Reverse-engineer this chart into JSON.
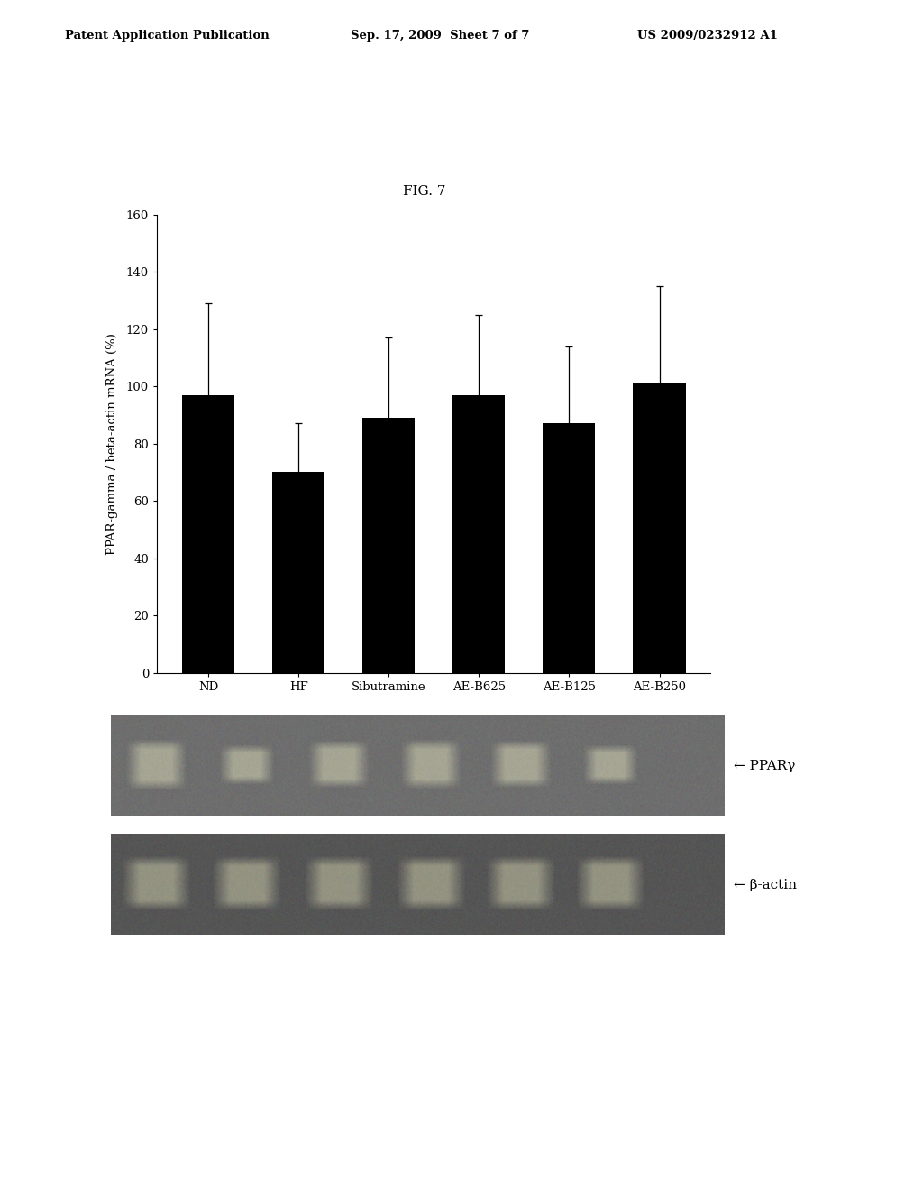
{
  "title": "FIG. 7",
  "header_left": "Patent Application Publication",
  "header_mid": "Sep. 17, 2009  Sheet 7 of 7",
  "header_right": "US 2009/0232912 A1",
  "categories": [
    "ND",
    "HF",
    "Sibutramine",
    "AE-B625",
    "AE-B125",
    "AE-B250"
  ],
  "values": [
    97,
    70,
    89,
    97,
    87,
    101
  ],
  "errors": [
    32,
    17,
    28,
    28,
    27,
    34
  ],
  "bar_color": "#000000",
  "ylabel": "PPAR-gamma / beta-actin mRNA (%)",
  "ylim": [
    0,
    160
  ],
  "yticks": [
    0,
    20,
    40,
    60,
    80,
    100,
    120,
    140,
    160
  ],
  "gel_label1": "← PPARγ",
  "gel_label2": "← β-actin",
  "background_color": "#ffffff",
  "gel1_bg": "#6e6e6e",
  "gel2_bg": "#555555",
  "gel_band1_color": "#b8b8a0",
  "gel_band2_color": "#a8a890",
  "band_positions_ppar": [
    0.075,
    0.222,
    0.372,
    0.522,
    0.668,
    0.815
  ],
  "band_positions_beta": [
    0.075,
    0.222,
    0.372,
    0.522,
    0.668,
    0.815
  ],
  "ppar_band_widths": [
    0.1,
    0.09,
    0.1,
    0.1,
    0.1,
    0.09
  ],
  "ppar_band_heights": [
    0.52,
    0.4,
    0.48,
    0.5,
    0.48,
    0.4
  ],
  "beta_band_widths": [
    0.115,
    0.115,
    0.115,
    0.115,
    0.115,
    0.115
  ],
  "beta_band_heights": [
    0.55,
    0.55,
    0.55,
    0.55,
    0.55,
    0.55
  ]
}
